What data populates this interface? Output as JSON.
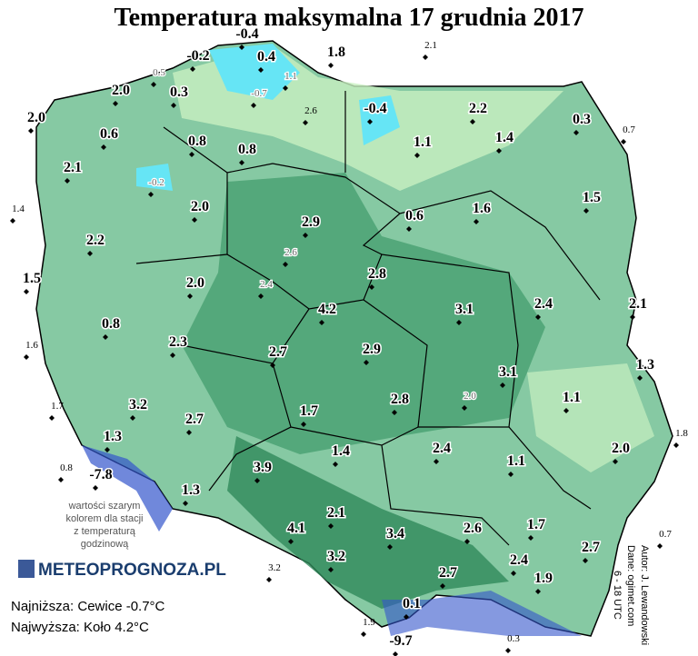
{
  "title": "Temperatura maksymalna 17 grudnia 2017",
  "stations": [
    "-0.4",
    "-0.2",
    "0.4",
    "1.8",
    "2.1",
    "0.5",
    "1.1",
    "-0.7",
    "2.0",
    "0.3",
    "2.6",
    "-0.4",
    "2.2",
    "0.3",
    "0.7",
    "2.0",
    "0.6",
    "0.8",
    "1.1",
    "1.4",
    "0.8",
    "2.1",
    "-0.2",
    "1.5",
    "1.4",
    "2.0",
    "0.6",
    "1.6",
    "2.9",
    "2.2",
    "2.6",
    "2.8",
    "1.5",
    "2.0",
    "2.4",
    "2.4",
    "2.1",
    "4.2",
    "3.1",
    "0.8",
    "1.6",
    "2.3",
    "2.7",
    "2.9",
    "1.3",
    "3.1",
    "2.8",
    "2.0",
    "1.1",
    "1.7",
    "3.2",
    "1.7",
    "2.7",
    "1.8",
    "1.3",
    "2.4",
    "2.0",
    "1.4",
    "0.8",
    "-7.8",
    "3.9",
    "1.1",
    "1.3",
    "2.1",
    "1.7",
    "4.1",
    "3.4",
    "2.6",
    "0.7",
    "2.7",
    "3.2",
    "3.2",
    "2.4",
    "2.7",
    "1.9",
    "0.1",
    "1.9",
    "-9.7",
    "0.3"
  ],
  "legend_note": [
    "wartości szarym",
    "kolorem dla stacji",
    "z temperaturą",
    "godzinową"
  ],
  "logo": "METEOPROGNOZA.PL",
  "summary": {
    "lowest": "Najniższa: Cewice -0.7°C",
    "highest": "Najwyższa: Koło 4.2°C"
  },
  "credits": [
    "Autor: J. Lewandowski",
    "Dane: ogimet.com",
    "6 - 18 UTC"
  ]
}
